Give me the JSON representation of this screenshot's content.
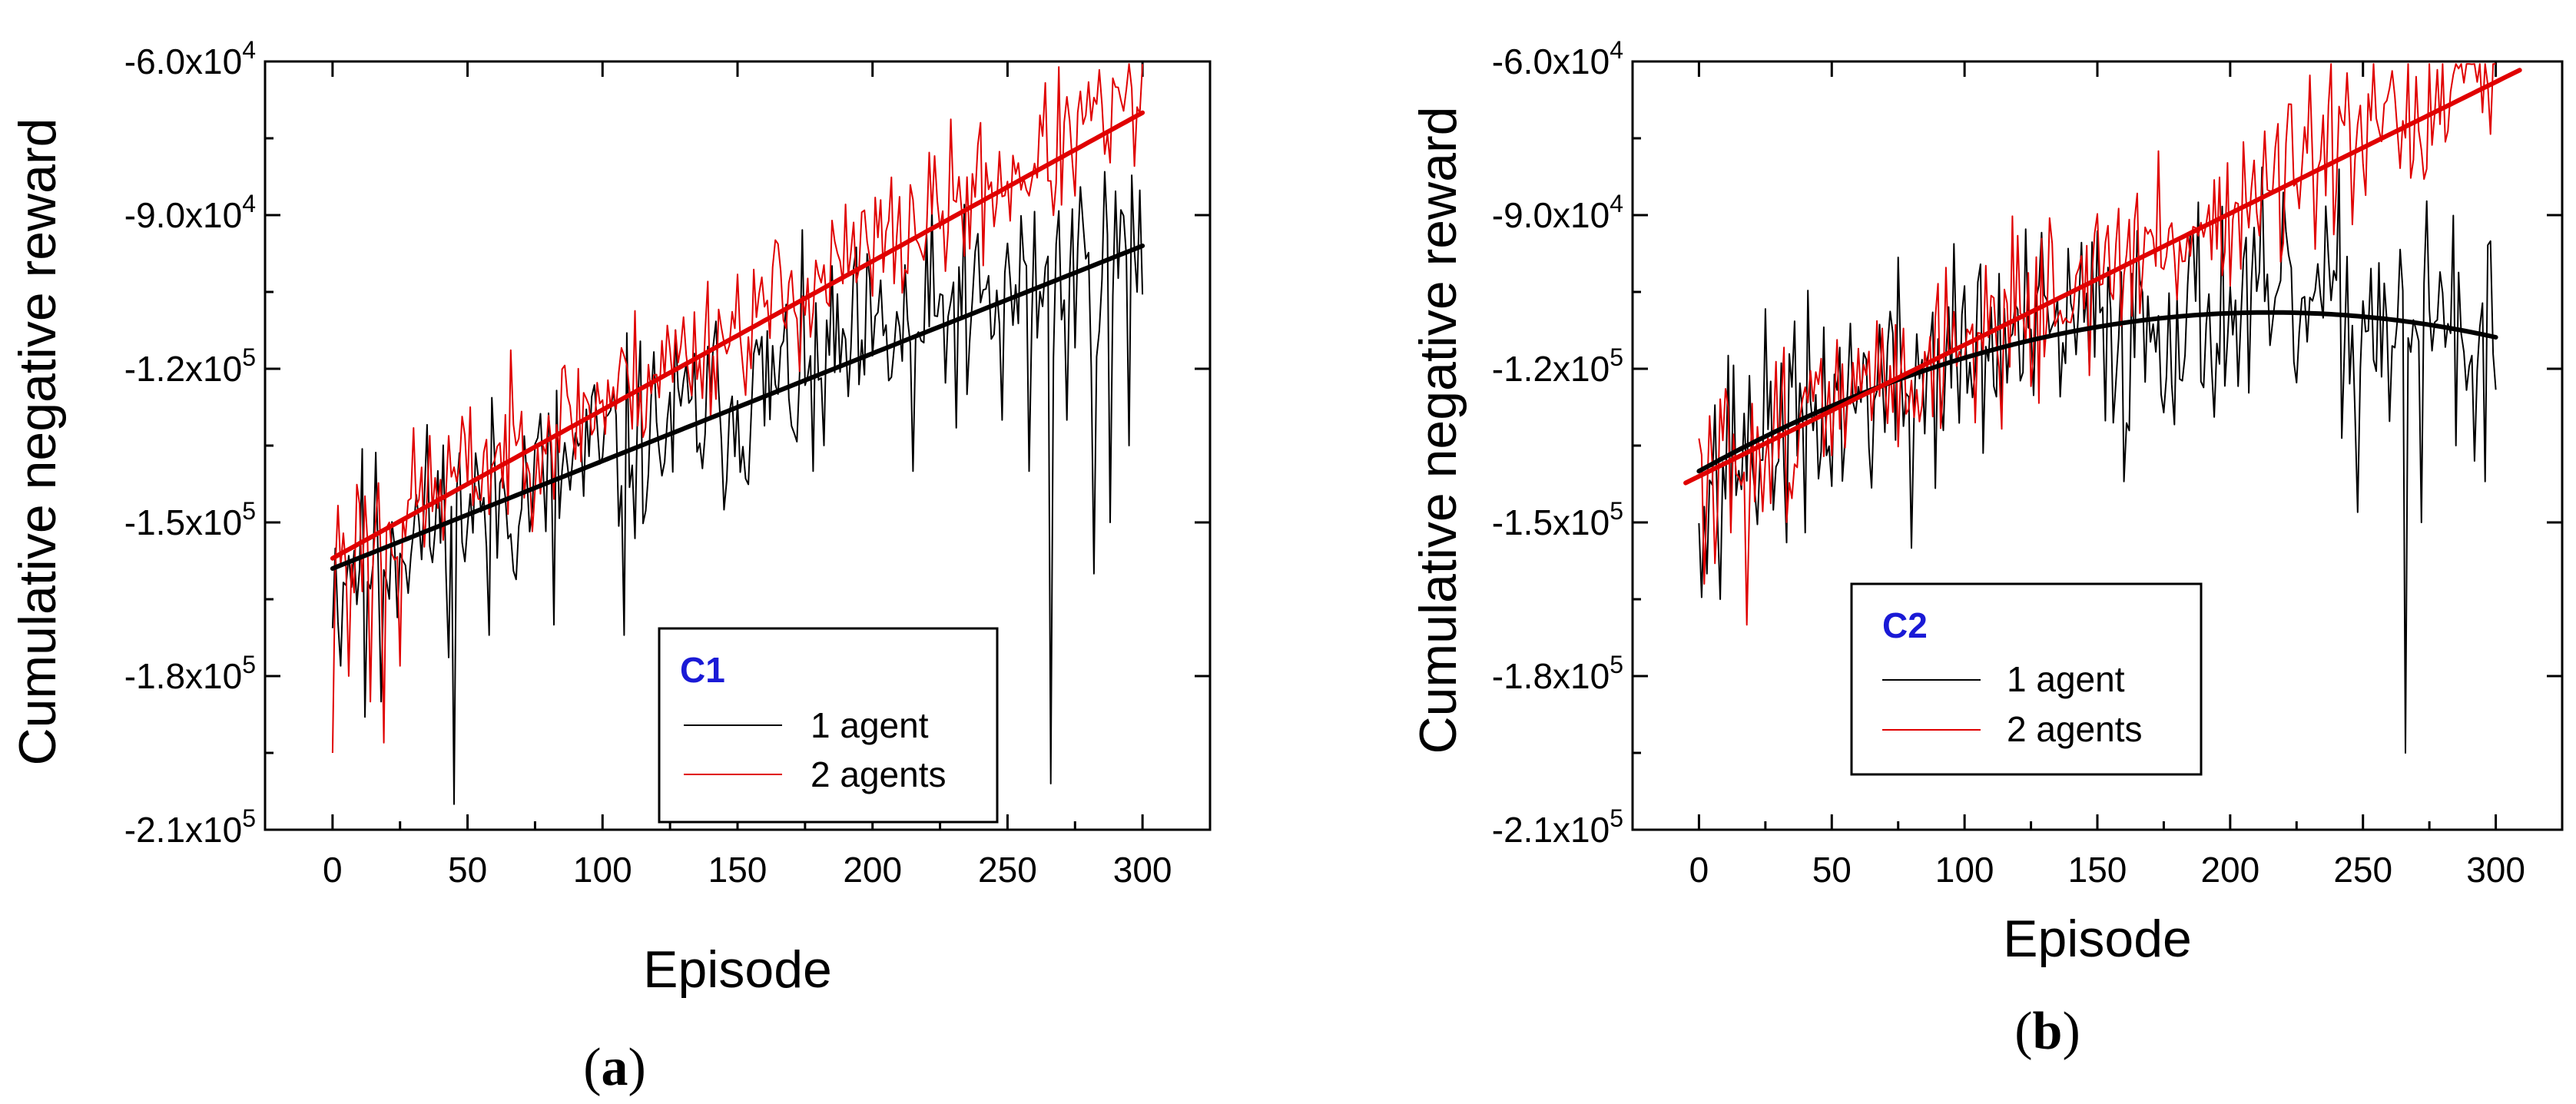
{
  "chart_data": [
    {
      "id": "a",
      "type": "line",
      "caption_letter": "a",
      "xlabel": "Episode",
      "ylabel": "Cumulative negative reward",
      "xlim": [
        -25,
        325
      ],
      "ylim": [
        -210000,
        -60000
      ],
      "xticks": [
        0,
        50,
        100,
        150,
        200,
        250,
        300
      ],
      "xtick_labels": [
        "0",
        "50",
        "100",
        "150",
        "200",
        "250",
        "300"
      ],
      "yticks": [
        -60000,
        -90000,
        -120000,
        -150000,
        -180000,
        -210000
      ],
      "ytick_labels": [
        {
          "mantissa": "-6.0x10",
          "exp": "4"
        },
        {
          "mantissa": "-9.0x10",
          "exp": "4"
        },
        {
          "mantissa": "-1.2x10",
          "exp": "5"
        },
        {
          "mantissa": "-1.5x10",
          "exp": "5"
        },
        {
          "mantissa": "-1.8x10",
          "exp": "5"
        },
        {
          "mantissa": "-2.1x10",
          "exp": "5"
        }
      ],
      "legend": {
        "title": "C1",
        "title_color": "#1a1ad6",
        "entries": [
          "1 agent",
          "2 agents"
        ],
        "placement": "bottom-right"
      },
      "series": [
        {
          "name": "1 agent",
          "color": "#000000",
          "noisy": true,
          "start": -158000,
          "end": -95000,
          "amp": 10000,
          "seed": 11,
          "spikes": [
            [
              3,
              -178000
            ],
            [
              12,
              -188000
            ],
            [
              18,
              -185000
            ],
            [
              45,
              -205000
            ],
            [
              58,
              -172000
            ],
            [
              82,
              -170000
            ],
            [
              108,
              -172000
            ],
            [
              178,
              -140000
            ],
            [
              215,
              -140000
            ],
            [
              235,
              -125000
            ],
            [
              248,
              -130000
            ],
            [
              258,
              -140000
            ],
            [
              266,
              -201000
            ],
            [
              272,
              -130000
            ],
            [
              282,
              -160000
            ],
            [
              288,
              -150000
            ],
            [
              295,
              -135000
            ]
          ]
        },
        {
          "name": "2 agents",
          "color": "#e00000",
          "noisy": true,
          "start": -155000,
          "end": -68000,
          "amp": 7000,
          "seed": 23,
          "spikes": [
            [
              0,
              -195000
            ],
            [
              6,
              -180000
            ],
            [
              14,
              -185000
            ],
            [
              19,
              -193000
            ],
            [
              25,
              -178000
            ],
            [
              280,
              -64000
            ],
            [
              290,
              -65000
            ]
          ]
        },
        {
          "name": "1 agent fit",
          "color": "#000000",
          "noisy": false,
          "fit": "linear",
          "start": -159000,
          "end": -96000
        },
        {
          "name": "2 agents fit",
          "color": "#e00000",
          "noisy": false,
          "fit": "linear",
          "start": -157000,
          "end": -70000
        }
      ]
    },
    {
      "id": "b",
      "type": "line",
      "caption_letter": "b",
      "xlabel": "Episode",
      "ylabel": "Cumulative negative reward",
      "xlim": [
        -25,
        325
      ],
      "ylim": [
        -210000,
        -60000
      ],
      "xticks": [
        0,
        50,
        100,
        150,
        200,
        250,
        300
      ],
      "xtick_labels": [
        "0",
        "50",
        "100",
        "150",
        "200",
        "250",
        "300"
      ],
      "yticks": [
        -60000,
        -90000,
        -120000,
        -150000,
        -180000,
        -210000
      ],
      "ytick_labels": [
        {
          "mantissa": "-6.0x10",
          "exp": "4"
        },
        {
          "mantissa": "-9.0x10",
          "exp": "4"
        },
        {
          "mantissa": "-1.2x10",
          "exp": "5"
        },
        {
          "mantissa": "-1.5x10",
          "exp": "5"
        },
        {
          "mantissa": "-1.8x10",
          "exp": "5"
        },
        {
          "mantissa": "-2.1x10",
          "exp": "5"
        }
      ],
      "legend": {
        "title": "C2",
        "title_color": "#1a1ad6",
        "entries": [
          "1 agent",
          "2 agents"
        ],
        "placement": "bottom-center"
      },
      "series": [
        {
          "name": "1 agent",
          "color": "#000000",
          "noisy": true,
          "fit": "quadratic",
          "start": -140000,
          "peak_x": 215,
          "peak_y": -109000,
          "end": -112000,
          "amp": 11000,
          "seed": 37,
          "spikes": [
            [
              3,
              -160000
            ],
            [
              8,
              -165000
            ],
            [
              40,
              -152000
            ],
            [
              80,
              -155000
            ],
            [
              160,
              -142000
            ],
            [
              248,
              -148000
            ],
            [
              266,
              -195000
            ],
            [
              272,
              -150000
            ],
            [
              285,
              -135000
            ],
            [
              292,
              -138000
            ],
            [
              296,
              -142000
            ]
          ]
        },
        {
          "name": "2 agents",
          "color": "#e00000",
          "noisy": true,
          "start": -140000,
          "end": -64000,
          "amp": 8000,
          "seed": 51,
          "spikes": [
            [
              2,
              -162000
            ],
            [
              6,
              -158000
            ],
            [
              18,
              -170000
            ],
            [
              12,
              -152000
            ],
            [
              120,
              -94000
            ],
            [
              285,
              -60000
            ],
            [
              293,
              -64000
            ]
          ]
        },
        {
          "name": "1 agent fit",
          "color": "#000000",
          "noisy": false,
          "fit": "quadratic",
          "start": -140000,
          "peak_x": 215,
          "peak_y": -109000,
          "end": -112000,
          "x_end": 300
        },
        {
          "name": "2 agents fit",
          "color": "#e00000",
          "noisy": false,
          "fit": "linear",
          "start": -141000,
          "end": -64000,
          "x_start": -5,
          "x_end": 310
        }
      ]
    }
  ]
}
